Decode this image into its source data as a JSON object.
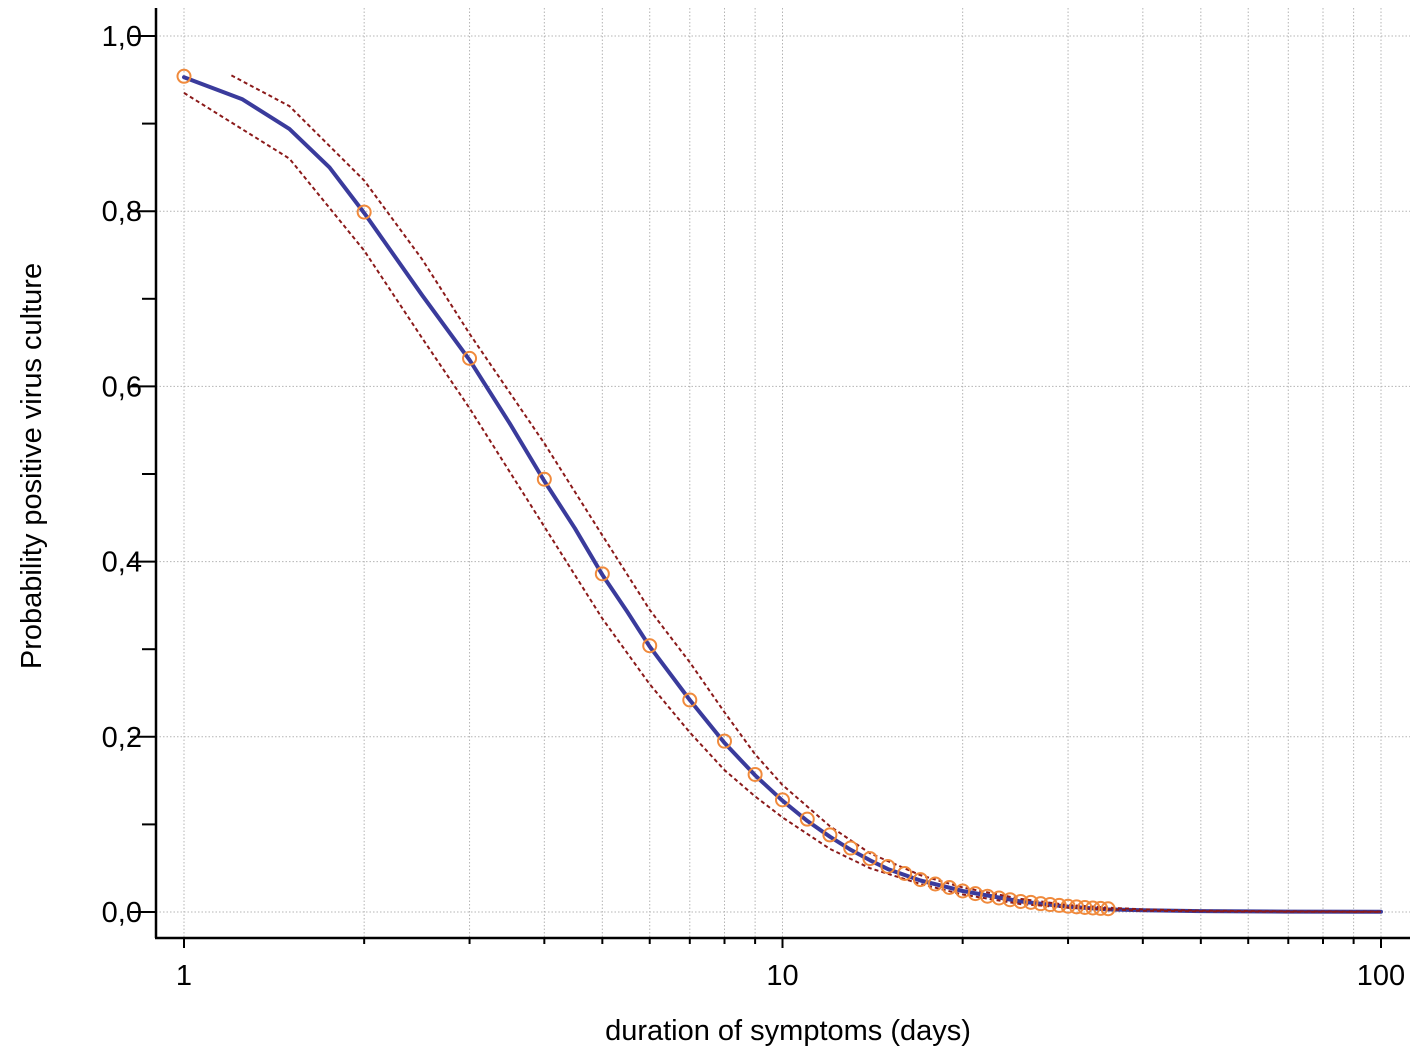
{
  "chart_data": {
    "type": "line",
    "title": "",
    "xlabel": "duration of symptoms (days)",
    "ylabel": "Probability positive virus culture",
    "xscale": "log",
    "xlim": [
      1,
      100
    ],
    "ylim": [
      0,
      1
    ],
    "x_tick_labels": [
      {
        "value": 1,
        "label": "1"
      },
      {
        "value": 10,
        "label": "10"
      },
      {
        "value": 100,
        "label": "100"
      }
    ],
    "y_tick_labels": [
      {
        "value": 0.0,
        "label": "0,0"
      },
      {
        "value": 0.2,
        "label": "0,2"
      },
      {
        "value": 0.4,
        "label": "0,4"
      },
      {
        "value": 0.6,
        "label": "0,6"
      },
      {
        "value": 0.8,
        "label": "0,8"
      },
      {
        "value": 1.0,
        "label": "1,0"
      }
    ],
    "grid": true,
    "legend": "none",
    "colors": {
      "fit": "#3a3b9c",
      "ci": "#8b1a1a",
      "points": "#f08a3c",
      "grid": "#b4b4b4",
      "axis": "#000000"
    },
    "series": [
      {
        "style": "solid",
        "x": [
          1,
          1.25,
          1.5,
          1.75,
          2,
          2.5,
          3,
          3.5,
          4,
          4.5,
          5,
          5.5,
          6,
          7,
          8,
          9,
          10,
          11,
          12,
          13,
          14,
          15,
          17,
          20,
          25,
          30,
          35,
          40,
          50,
          70,
          100
        ],
        "y": [
          0.953,
          0.928,
          0.894,
          0.85,
          0.798,
          0.704,
          0.63,
          0.558,
          0.492,
          0.438,
          0.385,
          0.343,
          0.303,
          0.242,
          0.193,
          0.156,
          0.127,
          0.104,
          0.086,
          0.071,
          0.059,
          0.049,
          0.036,
          0.024,
          0.012,
          0.006,
          0.003,
          0.002,
          0.001,
          0.0005,
          0.0002
        ]
      },
      {
        "style": "dashed",
        "x": [
          1.2,
          1.5,
          2,
          2.5,
          3,
          4,
          5,
          6,
          7,
          8,
          9,
          10,
          12,
          14,
          17,
          20,
          25,
          30,
          35,
          40,
          50,
          70,
          100
        ],
        "y": [
          0.955,
          0.92,
          0.835,
          0.745,
          0.66,
          0.535,
          0.43,
          0.345,
          0.285,
          0.228,
          0.18,
          0.145,
          0.098,
          0.067,
          0.042,
          0.028,
          0.015,
          0.008,
          0.005,
          0.003,
          0.0015,
          0.0007,
          0.0003
        ]
      },
      {
        "style": "dashed",
        "x": [
          1,
          1.5,
          2,
          2.5,
          3,
          4,
          5,
          6,
          7,
          8,
          9,
          10,
          12,
          14,
          17,
          20,
          25,
          30,
          35,
          40,
          50,
          70,
          100
        ],
        "y": [
          0.935,
          0.86,
          0.755,
          0.655,
          0.575,
          0.44,
          0.335,
          0.26,
          0.205,
          0.162,
          0.132,
          0.108,
          0.072,
          0.05,
          0.032,
          0.02,
          0.009,
          0.005,
          0.003,
          0.0015,
          0.0008,
          0.0003,
          0.0001
        ]
      },
      {
        "style": "markers",
        "x": [
          1,
          2,
          3,
          4,
          5,
          6,
          7,
          8,
          9,
          10,
          11,
          12,
          13,
          14,
          15,
          16,
          17,
          18,
          19,
          20,
          21,
          22,
          23,
          24,
          25,
          26,
          27,
          28,
          29,
          30,
          31,
          32,
          33,
          34,
          35
        ],
        "y": [
          0.954,
          0.799,
          0.632,
          0.494,
          0.386,
          0.304,
          0.242,
          0.195,
          0.157,
          0.128,
          0.106,
          0.088,
          0.073,
          0.061,
          0.052,
          0.044,
          0.037,
          0.032,
          0.028,
          0.024,
          0.021,
          0.018,
          0.016,
          0.014,
          0.012,
          0.011,
          0.0095,
          0.0085,
          0.0075,
          0.0066,
          0.0059,
          0.0052,
          0.0046,
          0.0041,
          0.0037
        ]
      }
    ]
  }
}
